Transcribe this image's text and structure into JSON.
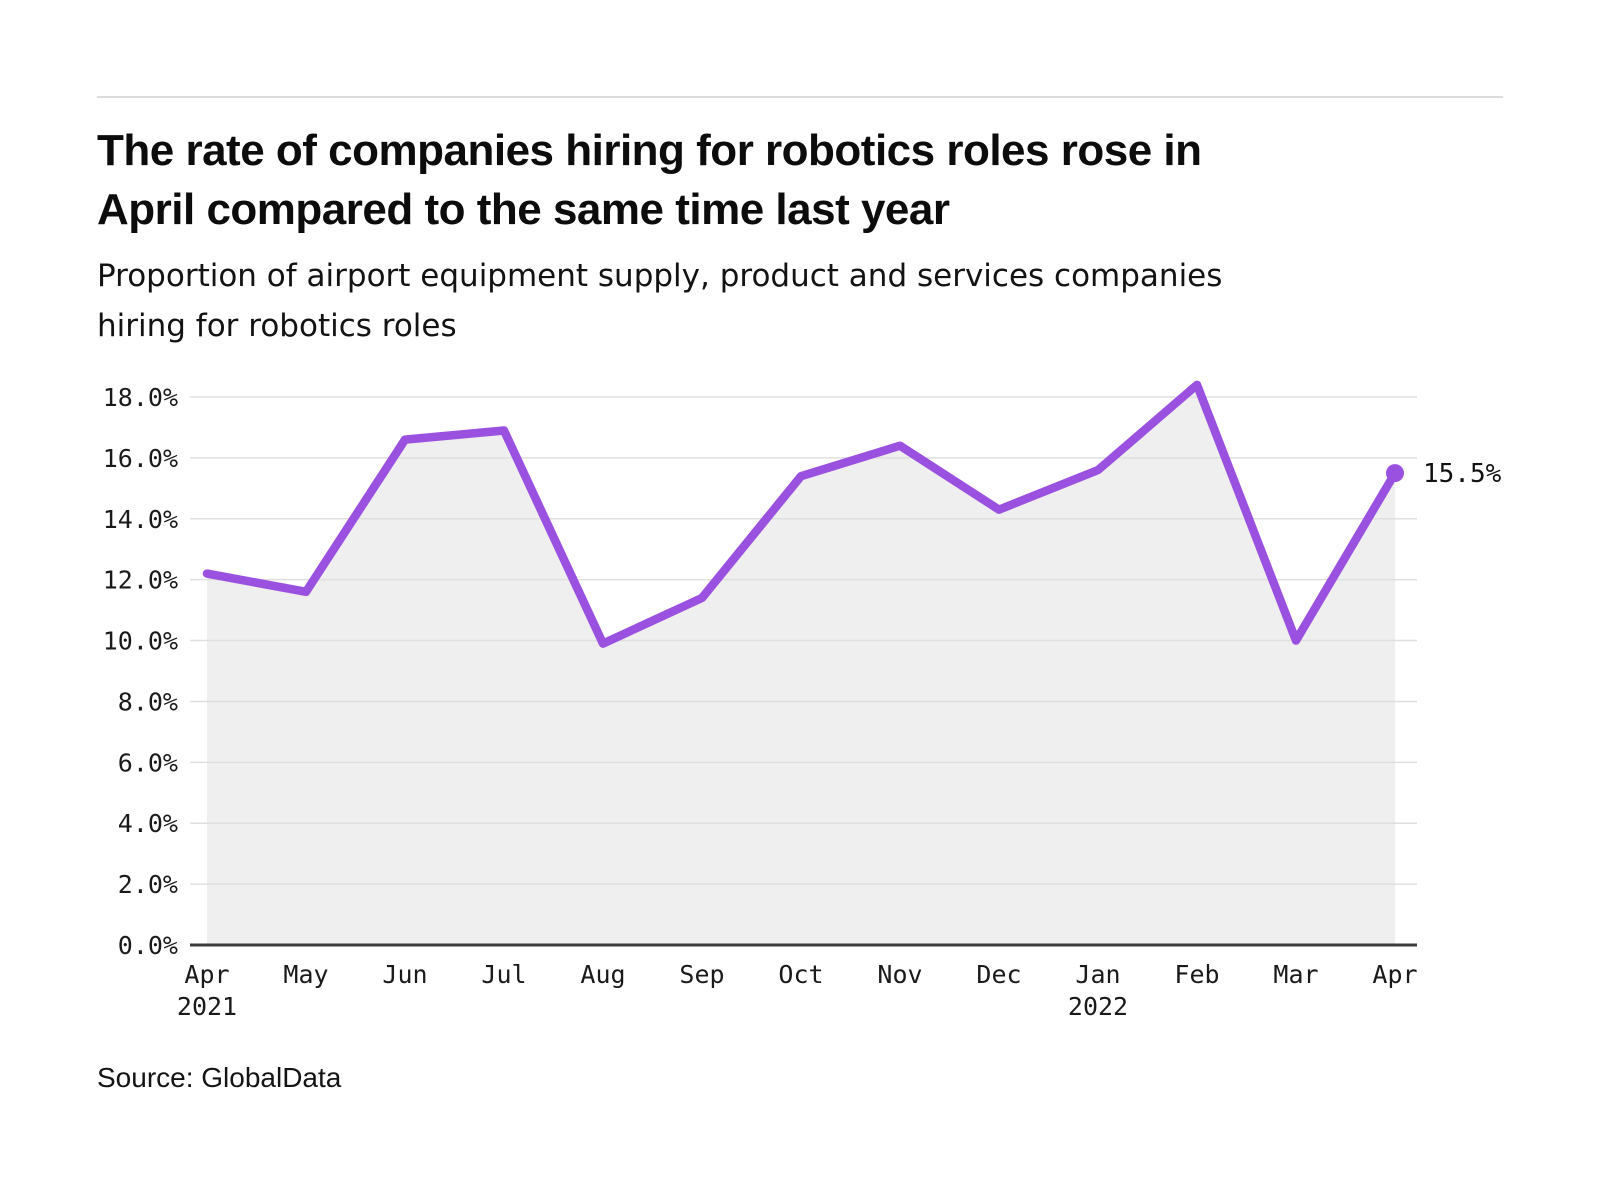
{
  "header": {
    "title_lines": [
      "The rate of companies hiring for robotics roles rose in",
      "April compared to the same time last year"
    ],
    "subtitle_lines": [
      "Proportion of airport equipment supply, product and services companies",
      "hiring for robotics roles"
    ]
  },
  "chart_data": {
    "type": "area",
    "title": "The rate of companies hiring for robotics roles rose in April compared to the same time last year",
    "subtitle": "Proportion of airport equipment supply, product and services companies hiring for robotics roles",
    "categories": [
      "Apr 2021",
      "May",
      "Jun",
      "Jul",
      "Aug",
      "Sep",
      "Oct",
      "Nov",
      "Dec",
      "Jan 2022",
      "Feb",
      "Mar",
      "Apr"
    ],
    "x_tick_labels": [
      {
        "month": "Apr",
        "year": "2021"
      },
      {
        "month": "May"
      },
      {
        "month": "Jun"
      },
      {
        "month": "Jul"
      },
      {
        "month": "Aug"
      },
      {
        "month": "Sep"
      },
      {
        "month": "Oct"
      },
      {
        "month": "Nov"
      },
      {
        "month": "Dec"
      },
      {
        "month": "Jan",
        "year": "2022"
      },
      {
        "month": "Feb"
      },
      {
        "month": "Mar"
      },
      {
        "month": "Apr"
      }
    ],
    "values": [
      12.2,
      11.6,
      16.6,
      16.9,
      9.9,
      11.4,
      15.4,
      16.4,
      14.3,
      15.6,
      18.4,
      10.0,
      15.5
    ],
    "unit": "%",
    "ylim": [
      0,
      18
    ],
    "y_tick_step": 2,
    "y_tick_labels": [
      "0.0%",
      "2.0%",
      "4.0%",
      "6.0%",
      "8.0%",
      "10.0%",
      "12.0%",
      "14.0%",
      "16.0%",
      "18.0%"
    ],
    "grid": "horizontal",
    "legend_position": "none",
    "end_point_label": "15.5%",
    "colors": {
      "line": "#9b51e0",
      "area_fill": "#efefef",
      "gridline": "#dfdfdf",
      "axis": "#3d3d3d",
      "label": "#1a1a1a"
    }
  },
  "footer": {
    "source": "Source: GlobalData"
  }
}
